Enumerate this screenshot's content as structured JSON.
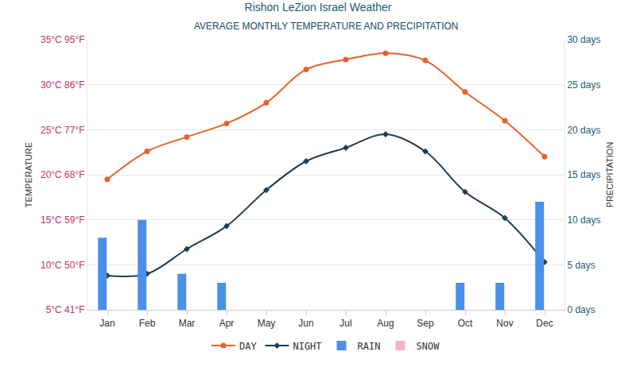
{
  "chart_data": {
    "type": "line",
    "title": "Rishon LeZion Israel Weather",
    "subtitle": "AVERAGE MONTHLY TEMPERATURE AND PRECIPITATION",
    "y_label": "TEMPERATURE",
    "y2_label": "PRECIPITATION",
    "categories": [
      "Jan",
      "Feb",
      "Mar",
      "Apr",
      "May",
      "Jun",
      "Jul",
      "Aug",
      "Sep",
      "Oct",
      "Nov",
      "Dec"
    ],
    "series": [
      {
        "name": "DAY",
        "type": "line",
        "color": "#e8622c",
        "marker": "circle",
        "line_style": "solid",
        "values": [
          19.5,
          22.6,
          24.2,
          25.7,
          28,
          31.7,
          32.8,
          33.5,
          32.7,
          29.2,
          26,
          22
        ]
      },
      {
        "name": "NIGHT",
        "type": "line",
        "color": "#1d3d52",
        "marker": "diamond",
        "line_style": "solid",
        "values": [
          8.8,
          9,
          11.75,
          14.3,
          18.3,
          21.5,
          23,
          24.5,
          22.6,
          18.1,
          15.2,
          10.3
        ]
      },
      {
        "name": "RAIN",
        "type": "bar",
        "axis": "y2",
        "color": "#4a8fe8",
        "values": [
          8,
          10,
          4,
          3,
          0,
          0,
          0,
          0,
          0,
          3,
          3,
          12
        ]
      },
      {
        "name": "SNOW",
        "type": "bar",
        "axis": "y2",
        "color": "#f4b6c2",
        "values": [
          0,
          0,
          0,
          0,
          0,
          0,
          0,
          0,
          0,
          0,
          0,
          0
        ]
      }
    ],
    "ylim": [
      5,
      35
    ],
    "yticks": [
      {
        "value": 5,
        "label": "5°C 41°F"
      },
      {
        "value": 10,
        "label": "10°C 50°F"
      },
      {
        "value": 15,
        "label": "15°C 59°F"
      },
      {
        "value": 20,
        "label": "20°C 68°F"
      },
      {
        "value": 25,
        "label": "25°C 77°F"
      },
      {
        "value": 30,
        "label": "30°C 86°F"
      },
      {
        "value": 35,
        "label": "35°C 95°F"
      }
    ],
    "y2lim": [
      0,
      30
    ],
    "y2ticks": [
      {
        "value": 0,
        "label": "0 days"
      },
      {
        "value": 5,
        "label": "5 days"
      },
      {
        "value": 10,
        "label": "10 days"
      },
      {
        "value": 15,
        "label": "15 days"
      },
      {
        "value": 20,
        "label": "20 days"
      },
      {
        "value": 25,
        "label": "25 days"
      },
      {
        "value": 30,
        "label": "30 days"
      }
    ],
    "grid": true,
    "legend": "bottom"
  }
}
